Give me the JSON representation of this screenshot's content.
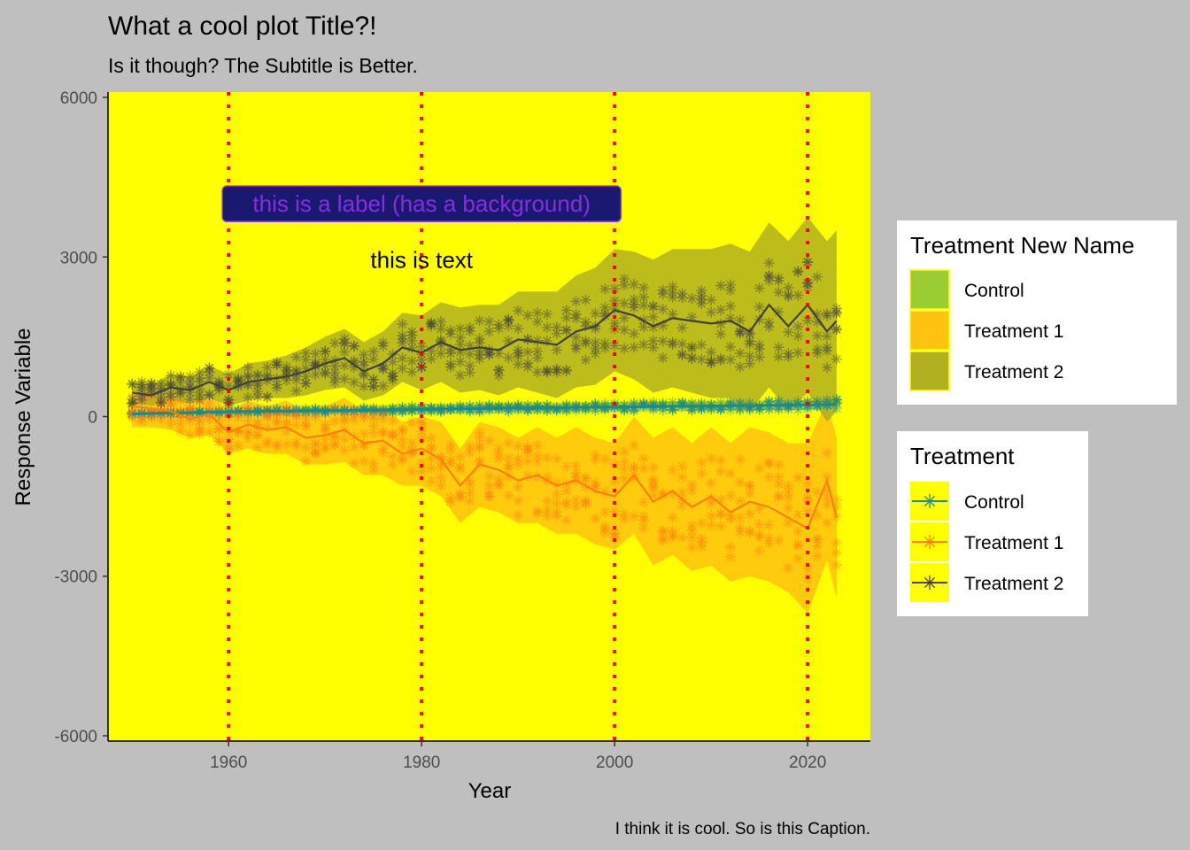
{
  "chart_data": {
    "type": "line",
    "title": "What a cool plot Title?!",
    "subtitle": "Is it though? The Subtitle is Better.",
    "caption": "I think it is cool. So is this Caption.",
    "xlabel": "Year",
    "ylabel": "Response Variable",
    "xlim": [
      1947.5,
      2026.5
    ],
    "ylim": [
      -6100,
      6100
    ],
    "x_ticks": [
      1960,
      1980,
      2000,
      2020
    ],
    "y_ticks": [
      -6000,
      -3000,
      0,
      3000,
      6000
    ],
    "grid": false,
    "panel_background": "#ffff00",
    "plot_background": "#bfbfbf",
    "vlines": {
      "x": [
        1960,
        1980,
        2000,
        2020
      ],
      "color": "#ff0000",
      "style": "dotted"
    },
    "annotations": [
      {
        "kind": "label",
        "text": "this is a label (has a background)",
        "x": 1980,
        "y": 4000,
        "fill": "#191970",
        "color": "#8a2be2"
      },
      {
        "kind": "text",
        "text": "this is text",
        "x": 1980,
        "y": 2950,
        "color": "#000000"
      }
    ],
    "legends": [
      {
        "title": "Treatment New Name",
        "kind": "fill",
        "entries": [
          {
            "label": "Control",
            "color": "#9acd32"
          },
          {
            "label": "Treatment 1",
            "color": "#ffc20e"
          },
          {
            "label": "Treatment 2",
            "color": "#b0b020"
          }
        ]
      },
      {
        "title": "Treatment",
        "kind": "line-point",
        "entries": [
          {
            "label": "Control",
            "color": "#1b8a8a"
          },
          {
            "label": "Treatment 1",
            "color": "#ff7f0e"
          },
          {
            "label": "Treatment 2",
            "color": "#404040"
          }
        ]
      }
    ],
    "series": [
      {
        "name": "Control",
        "line_color": "#1b8a8a",
        "ribbon_color": "#9acd32",
        "x": [
          1950,
          1955,
          1960,
          1965,
          1970,
          1975,
          1980,
          1985,
          1990,
          1995,
          2000,
          2005,
          2010,
          2015,
          2020,
          2023
        ],
        "y": [
          50,
          70,
          90,
          100,
          110,
          120,
          140,
          150,
          160,
          170,
          180,
          190,
          200,
          210,
          220,
          230
        ],
        "ribbon_low": [
          -40,
          -20,
          0,
          10,
          20,
          30,
          40,
          50,
          60,
          70,
          80,
          90,
          100,
          110,
          120,
          130
        ],
        "ribbon_high": [
          140,
          160,
          180,
          190,
          200,
          210,
          240,
          250,
          260,
          270,
          280,
          290,
          300,
          310,
          320,
          330
        ]
      },
      {
        "name": "Treatment 1",
        "line_color": "#ff7f0e",
        "ribbon_color": "#ffc20e",
        "x": [
          1950,
          1952,
          1954,
          1956,
          1958,
          1960,
          1962,
          1964,
          1966,
          1968,
          1970,
          1972,
          1974,
          1976,
          1978,
          1980,
          1982,
          1984,
          1986,
          1988,
          1990,
          1992,
          1994,
          1996,
          1998,
          2000,
          2002,
          2004,
          2006,
          2008,
          2010,
          2012,
          2014,
          2016,
          2018,
          2020,
          2022,
          2023
        ],
        "y": [
          200,
          150,
          100,
          -50,
          50,
          -300,
          -150,
          -250,
          -200,
          -400,
          -350,
          -250,
          -500,
          -450,
          -700,
          -600,
          -800,
          -1300,
          -900,
          -1000,
          -1200,
          -1100,
          -1300,
          -1200,
          -1400,
          -1500,
          -1100,
          -1600,
          -1400,
          -1700,
          -1500,
          -1800,
          -1600,
          -1700,
          -1900,
          -2100,
          -1200,
          -1900
        ],
        "ribbon_low": [
          -200,
          -200,
          -250,
          -400,
          -350,
          -700,
          -600,
          -700,
          -700,
          -900,
          -900,
          -850,
          -1100,
          -1100,
          -1300,
          -1300,
          -1500,
          -2000,
          -1700,
          -1800,
          -2000,
          -2000,
          -2200,
          -2200,
          -2400,
          -2500,
          -2200,
          -2800,
          -2600,
          -2900,
          -2800,
          -3100,
          -3000,
          -3100,
          -3300,
          -3700,
          -2700,
          -3400
        ],
        "ribbon_high": [
          600,
          500,
          450,
          300,
          450,
          100,
          300,
          200,
          300,
          100,
          200,
          350,
          100,
          200,
          -100,
          0,
          -100,
          -600,
          -100,
          -200,
          -400,
          -200,
          -400,
          -200,
          -400,
          -500,
          0,
          -400,
          -200,
          -500,
          -200,
          -500,
          -200,
          -300,
          -500,
          -500,
          300,
          -400
        ]
      },
      {
        "name": "Treatment 2",
        "line_color": "#404040",
        "ribbon_color": "#b0b020",
        "x": [
          1950,
          1952,
          1954,
          1956,
          1958,
          1960,
          1962,
          1964,
          1966,
          1968,
          1970,
          1972,
          1974,
          1976,
          1978,
          1980,
          1982,
          1984,
          1986,
          1988,
          1990,
          1992,
          1994,
          1996,
          1998,
          2000,
          2002,
          2004,
          2006,
          2008,
          2010,
          2012,
          2014,
          2016,
          2018,
          2020,
          2022,
          2023
        ],
        "y": [
          450,
          400,
          550,
          500,
          650,
          500,
          650,
          700,
          750,
          850,
          1000,
          1100,
          850,
          1000,
          1300,
          1200,
          1400,
          1250,
          1300,
          1250,
          1450,
          1400,
          1350,
          1600,
          1700,
          2000,
          1900,
          1700,
          1850,
          1800,
          1750,
          1800,
          1600,
          2100,
          1700,
          2100,
          1600,
          1800
        ],
        "ribbon_low": [
          250,
          200,
          300,
          250,
          350,
          200,
          300,
          350,
          350,
          400,
          500,
          550,
          300,
          400,
          650,
          500,
          650,
          450,
          500,
          400,
          550,
          450,
          350,
          550,
          600,
          850,
          700,
          450,
          550,
          450,
          350,
          350,
          100,
          550,
          100,
          450,
          -100,
          100
        ],
        "ribbon_high": [
          650,
          600,
          800,
          750,
          950,
          800,
          1000,
          1050,
          1150,
          1300,
          1500,
          1650,
          1400,
          1600,
          1950,
          1900,
          2150,
          2050,
          2100,
          2100,
          2350,
          2350,
          2350,
          2650,
          2800,
          3150,
          3100,
          2950,
          3150,
          3150,
          3150,
          3250,
          3100,
          3650,
          3300,
          3750,
          3300,
          3500
        ]
      }
    ]
  }
}
